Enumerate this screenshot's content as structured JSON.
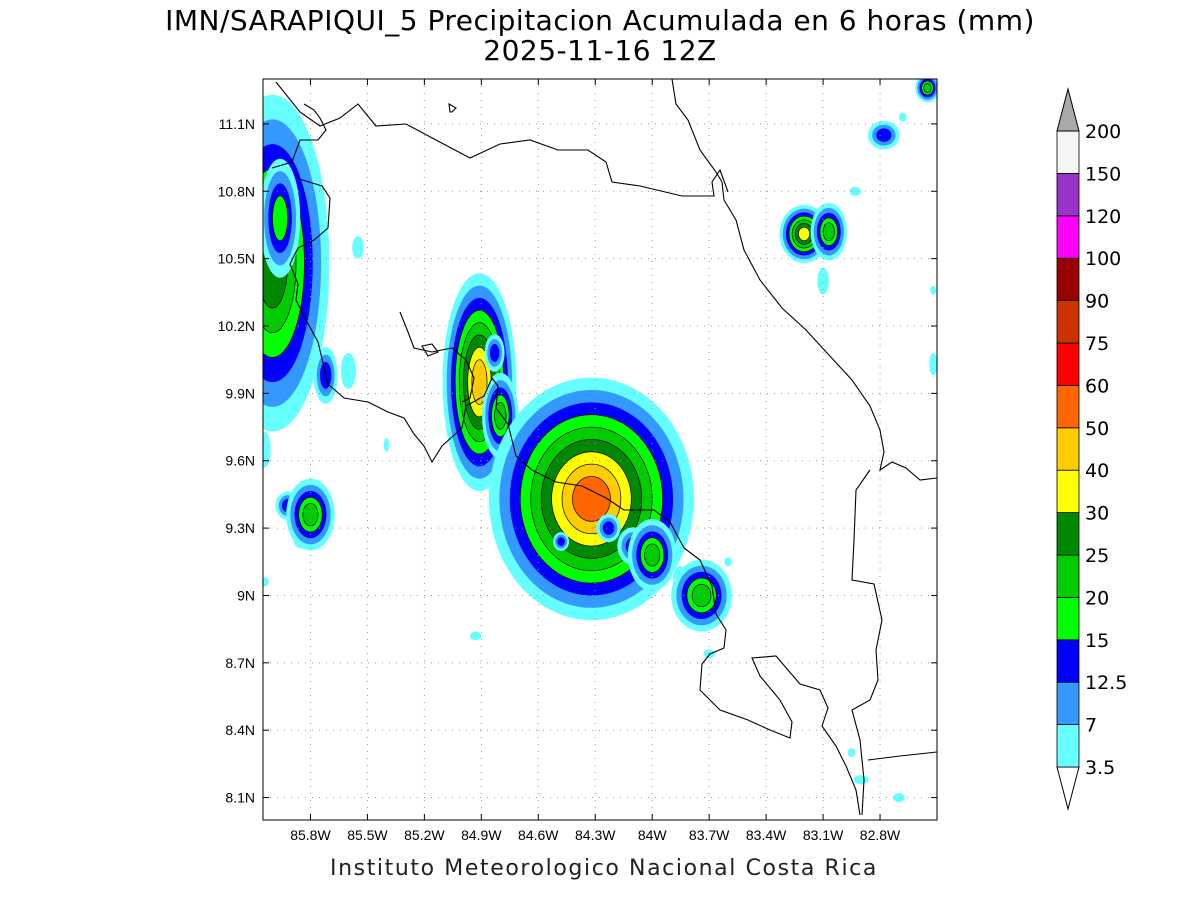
{
  "title": {
    "line1": "IMN/SARAPIQUI_5 Precipitacion Acumulada en 6 horas (mm)",
    "line2": "2025-11-16 12Z"
  },
  "footer": "Instituto Meteorologico Nacional Costa Rica",
  "map": {
    "lon_range": [
      -86.05,
      -82.5
    ],
    "lat_range": [
      8.0,
      11.3
    ],
    "lon_ticks": [
      {
        "v": -85.8,
        "label": "85.8W"
      },
      {
        "v": -85.5,
        "label": "85.5W"
      },
      {
        "v": -85.2,
        "label": "85.2W"
      },
      {
        "v": -84.9,
        "label": "84.9W"
      },
      {
        "v": -84.6,
        "label": "84.6W"
      },
      {
        "v": -84.3,
        "label": "84.3W"
      },
      {
        "v": -84.0,
        "label": "84W"
      },
      {
        "v": -83.7,
        "label": "83.7W"
      },
      {
        "v": -83.4,
        "label": "83.4W"
      },
      {
        "v": -83.1,
        "label": "83.1W"
      },
      {
        "v": -82.8,
        "label": "82.8W"
      }
    ],
    "lat_ticks": [
      {
        "v": 8.1,
        "label": "8.1N"
      },
      {
        "v": 8.4,
        "label": "8.4N"
      },
      {
        "v": 8.7,
        "label": "8.7N"
      },
      {
        "v": 9.0,
        "label": "9N"
      },
      {
        "v": 9.3,
        "label": "9.3N"
      },
      {
        "v": 9.6,
        "label": "9.6N"
      },
      {
        "v": 9.9,
        "label": "9.9N"
      },
      {
        "v": 10.2,
        "label": "10.2N"
      },
      {
        "v": 10.5,
        "label": "10.5N"
      },
      {
        "v": 10.8,
        "label": "10.8N"
      },
      {
        "v": 11.1,
        "label": "11.1N"
      }
    ],
    "grid": true,
    "cells": [
      {
        "lon": -86.0,
        "lat": 10.48,
        "rx": 0.08,
        "ry": 0.2,
        "level": 25
      },
      {
        "lon": -85.96,
        "lat": 10.68,
        "rx": 0.04,
        "ry": 0.1,
        "level": 15
      },
      {
        "lon": -85.72,
        "lat": 9.98,
        "rx": 0.03,
        "ry": 0.06,
        "level": 12.5
      },
      {
        "lon": -84.91,
        "lat": 9.95,
        "rx": 0.04,
        "ry": 0.1,
        "level": 40
      },
      {
        "lon": -84.83,
        "lat": 10.08,
        "rx": 0.025,
        "ry": 0.04,
        "level": 12.5
      },
      {
        "lon": -84.8,
        "lat": 9.8,
        "rx": 0.03,
        "ry": 0.06,
        "level": 20
      },
      {
        "lon": -84.32,
        "lat": 9.43,
        "rx": 0.1,
        "ry": 0.1,
        "level": 50
      },
      {
        "lon": -84.23,
        "lat": 9.3,
        "rx": 0.03,
        "ry": 0.03,
        "level": 12.5
      },
      {
        "lon": -84.1,
        "lat": 9.22,
        "rx": 0.04,
        "ry": 0.04,
        "level": 12.5
      },
      {
        "lon": -84.0,
        "lat": 9.18,
        "rx": 0.04,
        "ry": 0.05,
        "level": 20
      },
      {
        "lon": -83.74,
        "lat": 9.0,
        "rx": 0.05,
        "ry": 0.05,
        "level": 20
      },
      {
        "lon": -85.92,
        "lat": 9.4,
        "rx": 0.03,
        "ry": 0.03,
        "level": 12.5
      },
      {
        "lon": -85.8,
        "lat": 9.36,
        "rx": 0.04,
        "ry": 0.05,
        "level": 20
      },
      {
        "lon": -83.2,
        "lat": 10.61,
        "rx": 0.03,
        "ry": 0.03,
        "level": 30
      },
      {
        "lon": -83.07,
        "lat": 10.62,
        "rx": 0.03,
        "ry": 0.04,
        "level": 20
      },
      {
        "lon": -82.78,
        "lat": 11.05,
        "rx": 0.04,
        "ry": 0.03,
        "level": 12.5
      },
      {
        "lon": -82.55,
        "lat": 11.26,
        "rx": 0.02,
        "ry": 0.02,
        "level": 20
      },
      {
        "lon": -84.48,
        "lat": 9.24,
        "rx": 0.02,
        "ry": 0.02,
        "level": 12.5
      }
    ],
    "light_cells": [
      {
        "lon": -85.55,
        "lat": 10.55,
        "rx": 0.03,
        "ry": 0.05
      },
      {
        "lon": -85.6,
        "lat": 10.0,
        "rx": 0.04,
        "ry": 0.08
      },
      {
        "lon": -84.55,
        "lat": 9.5,
        "rx": 0.03,
        "ry": 0.04
      },
      {
        "lon": -84.42,
        "lat": 9.35,
        "rx": 0.03,
        "ry": 0.05
      },
      {
        "lon": -83.85,
        "lat": 9.08,
        "rx": 0.04,
        "ry": 0.05
      },
      {
        "lon": -83.7,
        "lat": 8.74,
        "rx": 0.03,
        "ry": 0.02
      },
      {
        "lon": -83.1,
        "lat": 10.4,
        "rx": 0.03,
        "ry": 0.06
      },
      {
        "lon": -82.93,
        "lat": 10.8,
        "rx": 0.03,
        "ry": 0.02
      },
      {
        "lon": -82.9,
        "lat": 8.18,
        "rx": 0.04,
        "ry": 0.02
      },
      {
        "lon": -82.95,
        "lat": 8.3,
        "rx": 0.02,
        "ry": 0.02
      },
      {
        "lon": -82.7,
        "lat": 8.1,
        "rx": 0.03,
        "ry": 0.02
      },
      {
        "lon": -84.93,
        "lat": 8.82,
        "rx": 0.03,
        "ry": 0.02
      },
      {
        "lon": -86.04,
        "lat": 9.65,
        "rx": 0.03,
        "ry": 0.08
      },
      {
        "lon": -85.85,
        "lat": 9.25,
        "rx": 0.04,
        "ry": 0.04
      },
      {
        "lon": -86.04,
        "lat": 9.06,
        "rx": 0.02,
        "ry": 0.02
      },
      {
        "lon": -82.52,
        "lat": 10.03,
        "rx": 0.02,
        "ry": 0.05
      },
      {
        "lon": -82.52,
        "lat": 10.36,
        "rx": 0.015,
        "ry": 0.02
      },
      {
        "lon": -82.68,
        "lat": 11.13,
        "rx": 0.02,
        "ry": 0.02
      },
      {
        "lon": -85.4,
        "lat": 9.67,
        "rx": 0.015,
        "ry": 0.03
      },
      {
        "lon": -84.72,
        "lat": 9.59,
        "rx": 0.015,
        "ry": 0.03
      },
      {
        "lon": -83.6,
        "lat": 9.15,
        "rx": 0.02,
        "ry": 0.02
      }
    ]
  },
  "colorbar": {
    "levels": [
      {
        "label": "3.5",
        "color": "#66ffff"
      },
      {
        "label": "7",
        "color": "#3399ff"
      },
      {
        "label": "12.5",
        "color": "#0000ff"
      },
      {
        "label": "15",
        "color": "#00ff00"
      },
      {
        "label": "20",
        "color": "#00cc00"
      },
      {
        "label": "25",
        "color": "#008800"
      },
      {
        "label": "30",
        "color": "#ffff00"
      },
      {
        "label": "40",
        "color": "#ffcc00"
      },
      {
        "label": "50",
        "color": "#ff6600"
      },
      {
        "label": "60",
        "color": "#ff0000"
      },
      {
        "label": "75",
        "color": "#cc3300"
      },
      {
        "label": "90",
        "color": "#990000"
      },
      {
        "label": "100",
        "color": "#ff00ff"
      },
      {
        "label": "120",
        "color": "#9933cc"
      },
      {
        "label": "150",
        "color": "#f5f5f5"
      },
      {
        "label": "200",
        "color": ""
      }
    ],
    "over_color": "#aaaaaa",
    "under_color": "#ffffff"
  }
}
